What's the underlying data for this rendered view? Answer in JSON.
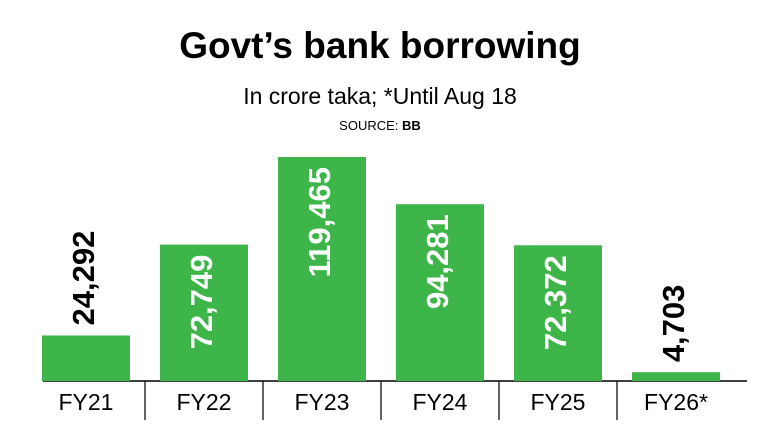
{
  "chart_data": {
    "type": "bar",
    "title": "Govt’s bank borrowing",
    "subtitle": "In crore taka; *Until Aug 18",
    "source_label": "SOURCE:",
    "source": "BB",
    "categories": [
      "FY21",
      "FY22",
      "FY23",
      "FY24",
      "FY25",
      "FY26*"
    ],
    "values": [
      24292,
      72749,
      119465,
      94281,
      72372,
      4703
    ],
    "value_labels": [
      "24,292",
      "72,749",
      "119,465",
      "94,281",
      "72,372",
      "4,703"
    ],
    "color": "#3db549"
  }
}
